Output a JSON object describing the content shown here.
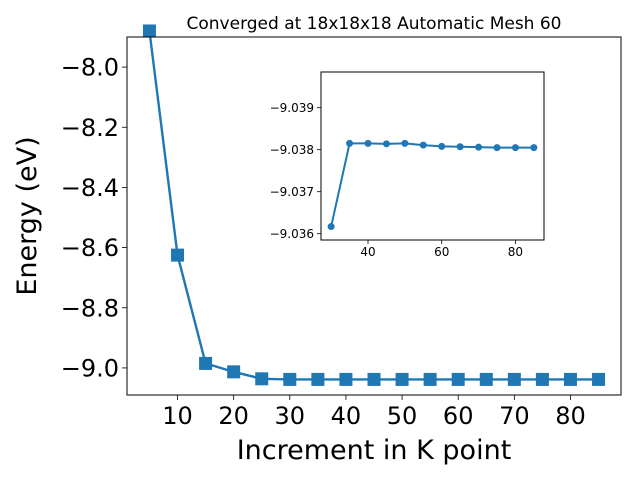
{
  "chart_data": [
    {
      "type": "line",
      "title": "Converged at 18x18x18 Automatic Mesh 60",
      "xlabel": "Increment in K point",
      "ylabel": "Energy (eV)",
      "xlim": [
        1,
        89
      ],
      "ylim": [
        -9.09,
        -7.9
      ],
      "xticks": [
        10,
        20,
        30,
        40,
        50,
        60,
        70,
        80
      ],
      "xtick_labels": [
        "10",
        "20",
        "30",
        "40",
        "50",
        "60",
        "70",
        "80"
      ],
      "yticks": [
        -8.0,
        -8.2,
        -8.4,
        -8.6,
        -8.8,
        -9.0
      ],
      "ytick_labels": [
        "−8.0",
        "−8.2",
        "−8.4",
        "−8.6",
        "−8.8",
        "−9.0"
      ],
      "grid": false,
      "marker": "square",
      "color": "#1f77b4",
      "series": [
        {
          "x": [
            5,
            10,
            15,
            20,
            25,
            30,
            35,
            40,
            45,
            50,
            55,
            60,
            65,
            70,
            75,
            80,
            85
          ],
          "y": [
            -7.88,
            -8.625,
            -8.985,
            -9.013,
            -9.0362,
            -9.0382,
            -9.0382,
            -9.0382,
            -9.0382,
            -9.0382,
            -9.0382,
            -9.0382,
            -9.0382,
            -9.0382,
            -9.0382,
            -9.0382,
            -9.0382
          ]
        }
      ]
    },
    {
      "type": "line",
      "title": "",
      "xlabel": "",
      "ylabel": "",
      "xlim": [
        27.25,
        87.75
      ],
      "ylim": [
        -9.03585,
        -9.03985
      ],
      "xticks": [
        40,
        60,
        80
      ],
      "xtick_labels": [
        "40",
        "60",
        "80"
      ],
      "yticks": [
        -9.036,
        -9.037,
        -9.038,
        -9.039
      ],
      "ytick_labels": [
        "−9.036",
        "−9.037",
        "−9.038",
        "−9.039"
      ],
      "grid": false,
      "marker": "circle",
      "color": "#1f77b4",
      "series": [
        {
          "x": [
            30,
            35,
            40,
            45,
            50,
            55,
            60,
            65,
            70,
            75,
            80,
            85
          ],
          "y": [
            -9.03617,
            -9.03815,
            -9.03815,
            -9.03814,
            -9.03815,
            -9.03811,
            -9.03808,
            -9.03807,
            -9.03806,
            -9.03805,
            -9.03805,
            -9.03805
          ]
        }
      ]
    }
  ]
}
